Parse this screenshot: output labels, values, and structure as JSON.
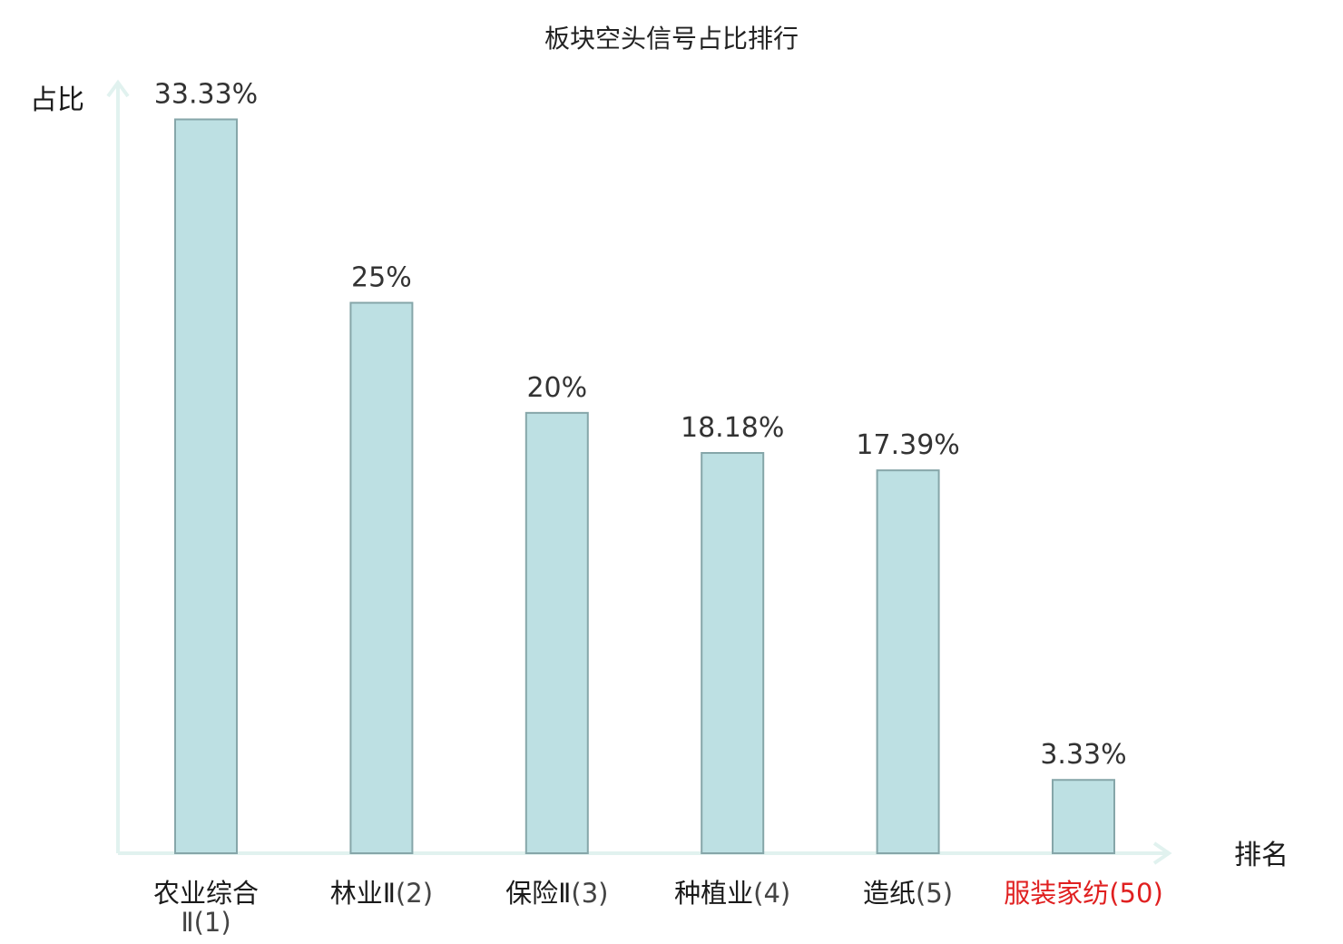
{
  "chart_data": {
    "type": "bar",
    "title": "板块空头信号占比排行",
    "ylabel": "占比",
    "xlabel": "排名",
    "ylim": [
      0,
      35
    ],
    "categories": [
      {
        "name": "农业综合Ⅱ",
        "rank": "(1)",
        "highlight": false
      },
      {
        "name": "林业Ⅱ",
        "rank": "(2)",
        "highlight": false
      },
      {
        "name": "保险Ⅱ",
        "rank": "(3)",
        "highlight": false
      },
      {
        "name": "种植业",
        "rank": "(4)",
        "highlight": false
      },
      {
        "name": "造纸",
        "rank": "(5)",
        "highlight": false
      },
      {
        "name": "服装家纺",
        "rank": "(50)",
        "highlight": true
      }
    ],
    "values": [
      33.33,
      25,
      20,
      18.18,
      17.39,
      3.33
    ],
    "value_labels": [
      "33.33%",
      "25%",
      "20%",
      "18.18%",
      "17.39%",
      "3.33%"
    ],
    "grid": false,
    "legend": "none"
  },
  "colors": {
    "bar_fill": "#bde0e3",
    "bar_stroke": "#86a6a9",
    "axis": "#e1f2ef",
    "label_normal": "#1a1a1a",
    "rank_normal": "#444444",
    "label_highlight": "#e02020"
  }
}
